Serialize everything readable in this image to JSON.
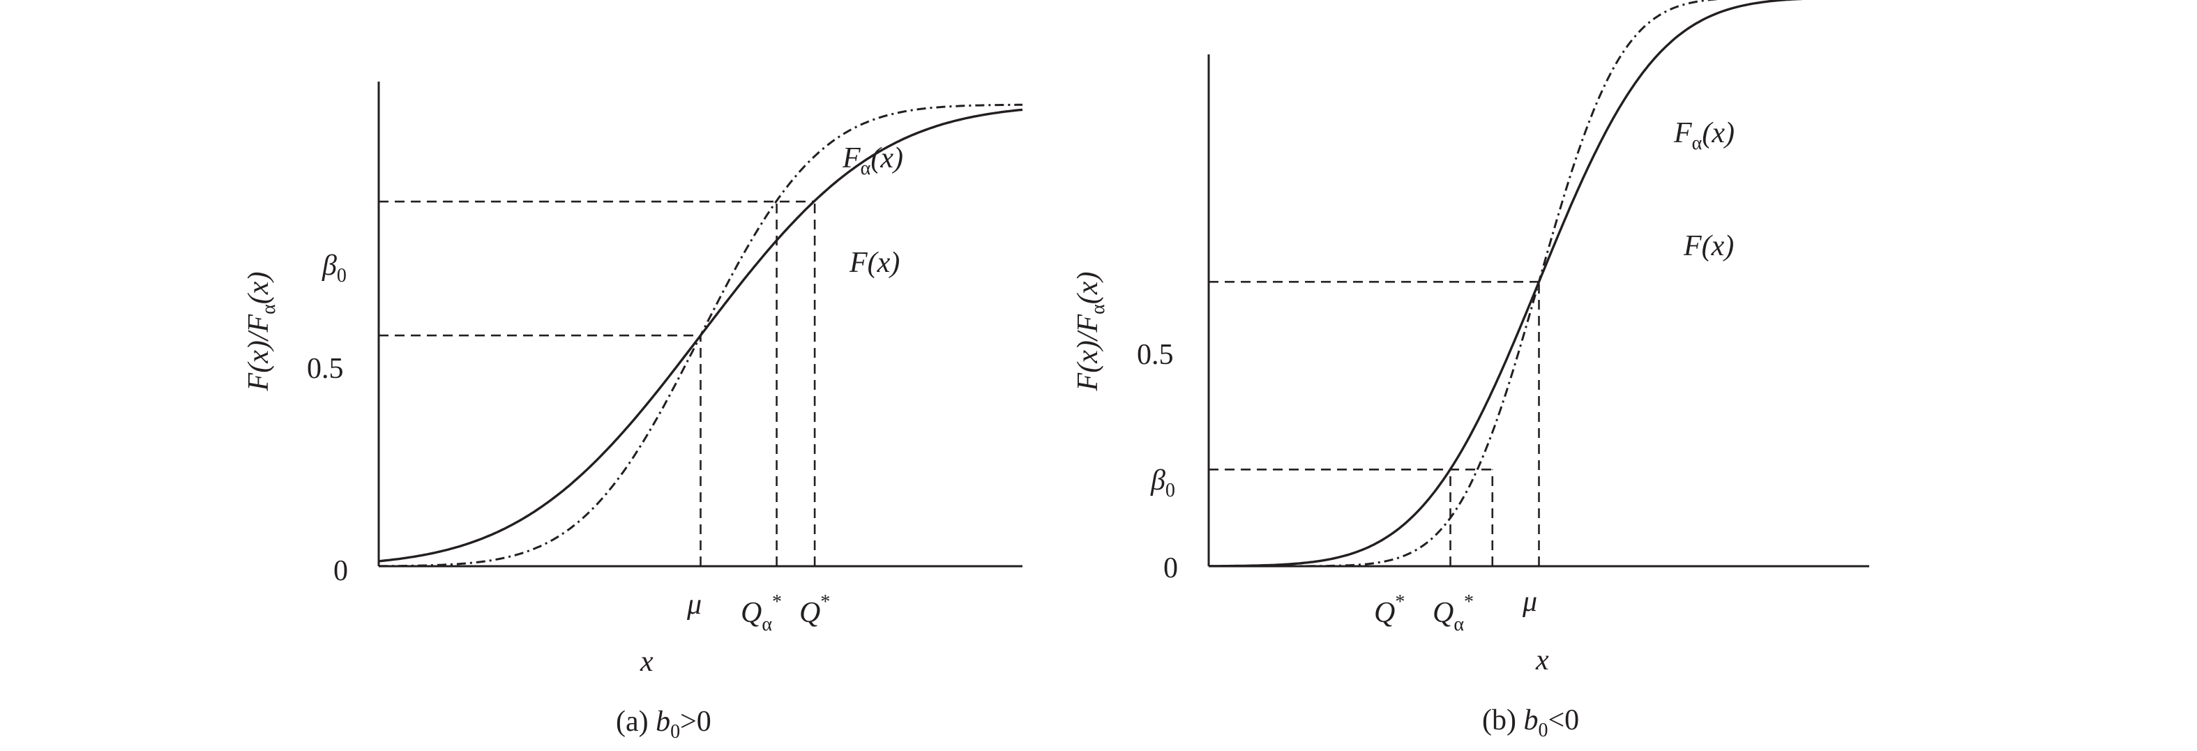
{
  "chart_data": [
    {
      "type": "line",
      "panel": "a",
      "caption": "(a) b0>0",
      "caption_parts": {
        "prefix": "(a) ",
        "var": "b",
        "sub": "0",
        "rel": ">0"
      },
      "ylabel": "F(x)/Fα(x)",
      "xlabel": "x",
      "y_ticks": [
        {
          "label": "0",
          "value": 0
        },
        {
          "label": "0.5",
          "value": 0.5
        },
        {
          "label": "β0",
          "main": "β",
          "sub": "0",
          "value": 0.79
        }
      ],
      "x_marks": [
        {
          "label": "μ",
          "main": "μ",
          "value": 0,
          "name": "mu"
        },
        {
          "label": "Qα*",
          "main": "Q",
          "sub": "α",
          "sup": "*",
          "value": 0.52,
          "name": "q-alpha-star"
        },
        {
          "label": "Q*",
          "main": "Q",
          "sup": "*",
          "value": 0.78,
          "name": "q-star"
        }
      ],
      "xlim": [
        -2.2,
        2.2
      ],
      "ylim": [
        0,
        1.05
      ],
      "series": [
        {
          "name": "F(x)",
          "main": "F",
          "arg": "(x)",
          "style": "solid",
          "mu": 0,
          "sigma": 0.96
        },
        {
          "name": "Fα(x)",
          "main": "F",
          "sub": "α",
          "arg": "(x)",
          "style": "dash-dot",
          "mu": 0,
          "sigma": 0.64
        }
      ]
    },
    {
      "type": "line",
      "panel": "b",
      "caption": "(b) b0<0",
      "caption_parts": {
        "prefix": "(b) ",
        "var": "b",
        "sub": "0",
        "rel": "<0"
      },
      "ylabel": "F(x)/Fα(x)",
      "xlabel": "x",
      "y_ticks": [
        {
          "label": "0",
          "value": 0
        },
        {
          "label": "β0",
          "main": "β",
          "sub": "0",
          "value": 0.17
        },
        {
          "label": "0.5",
          "value": 0.5
        }
      ],
      "x_marks": [
        {
          "label": "Q*",
          "main": "Q",
          "sup": "*",
          "value": -0.59,
          "name": "q-star"
        },
        {
          "label": "Qα*",
          "main": "Q",
          "sub": "α",
          "sup": "*",
          "value": -0.31,
          "name": "q-alpha-star"
        },
        {
          "label": "μ",
          "main": "μ",
          "value": 0,
          "name": "mu"
        }
      ],
      "xlim": [
        -2.2,
        2.2
      ],
      "ylim": [
        0,
        0.9
      ],
      "series": [
        {
          "name": "F(x)",
          "main": "F",
          "arg": "(x)",
          "style": "solid",
          "mu": 0,
          "sigma": 0.62
        },
        {
          "name": "Fα(x)",
          "main": "F",
          "sub": "α",
          "arg": "(x)",
          "style": "dash-dot",
          "mu": 0,
          "sigma": 0.43
        }
      ]
    }
  ]
}
